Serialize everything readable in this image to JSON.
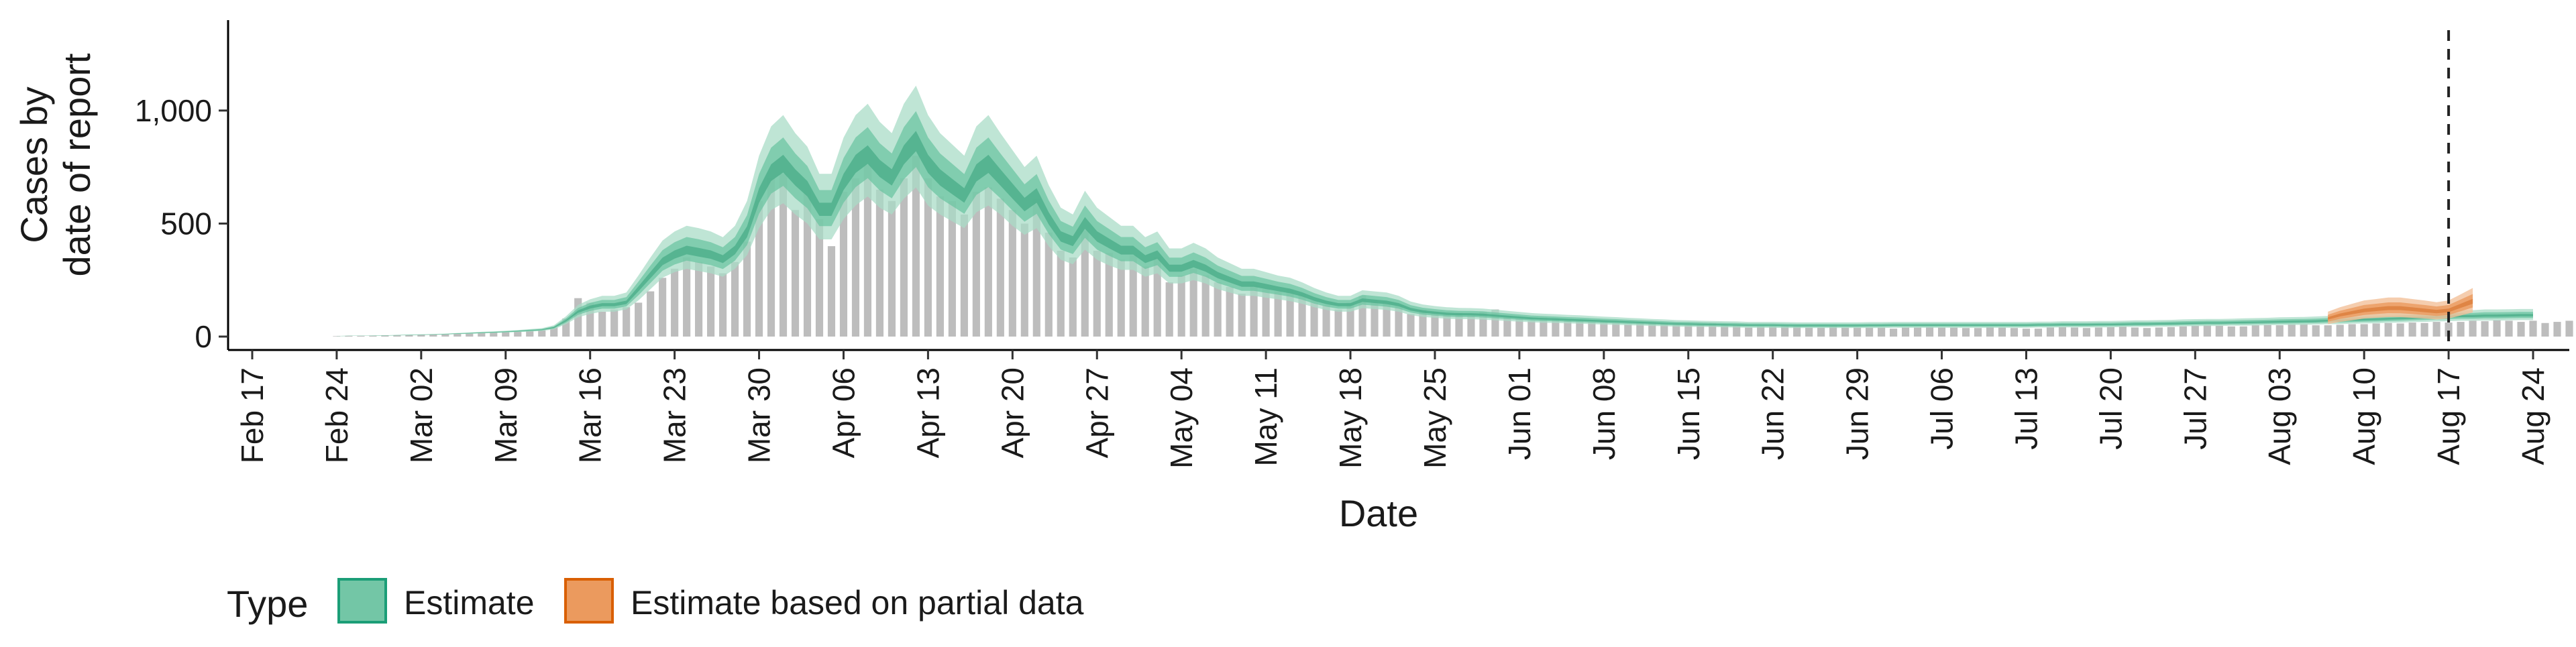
{
  "chart_data": {
    "type": "area",
    "xlabel": "Date",
    "ylabel_lines": [
      "Cases by",
      "date of report"
    ],
    "ylim": [
      0,
      1400
    ],
    "xlim": [
      "2020-02-15",
      "2020-08-27"
    ],
    "y_ticks": [
      0,
      500,
      1000
    ],
    "y_tick_labels": [
      "0",
      "500",
      "1,000"
    ],
    "x_ticks": [
      "2020-02-17",
      "2020-02-24",
      "2020-03-02",
      "2020-03-09",
      "2020-03-16",
      "2020-03-23",
      "2020-03-30",
      "2020-04-06",
      "2020-04-13",
      "2020-04-20",
      "2020-04-27",
      "2020-05-04",
      "2020-05-11",
      "2020-05-18",
      "2020-05-25",
      "2020-06-01",
      "2020-06-08",
      "2020-06-15",
      "2020-06-22",
      "2020-06-29",
      "2020-07-06",
      "2020-07-13",
      "2020-07-20",
      "2020-07-27",
      "2020-08-03",
      "2020-08-10",
      "2020-08-17",
      "2020-08-24"
    ],
    "x_tick_labels": [
      "Feb 17",
      "Feb 24",
      "Mar 02",
      "Mar 09",
      "Mar 16",
      "Mar 23",
      "Mar 30",
      "Apr 06",
      "Apr 13",
      "Apr 20",
      "Apr 27",
      "May 04",
      "May 11",
      "May 18",
      "May 25",
      "Jun 01",
      "Jun 08",
      "Jun 15",
      "Jun 22",
      "Jun 29",
      "Jul 06",
      "Jul 13",
      "Jul 20",
      "Jul 27",
      "Aug 03",
      "Aug 10",
      "Aug 17",
      "Aug 24"
    ],
    "reference_line_date": "2020-08-17",
    "grid": false,
    "legend_position": "bottom",
    "legend": {
      "title": "Type",
      "items": [
        {
          "label": "Estimate",
          "fill": "#73c6a6",
          "stroke": "#1b9e77"
        },
        {
          "label": "Estimate based on partial data",
          "fill": "#eb9a5e",
          "stroke": "#d95f02"
        }
      ]
    },
    "colors": {
      "bars": "#bdbdbd",
      "estimate_band_outer": "#a9dcc7",
      "estimate_band_mid": "#6cc4a1",
      "estimate_band_inner": "#45a985",
      "partial_band_outer": "#f3c09a",
      "partial_band_mid": "#eb9a5e",
      "partial_band_inner": "#d97b38",
      "reference_line": "#222222"
    },
    "reported_cases": {
      "start": "2020-02-24",
      "values": [
        2,
        3,
        3,
        4,
        5,
        6,
        7,
        8,
        9,
        10,
        12,
        14,
        16,
        18,
        20,
        22,
        25,
        28,
        40,
        80,
        170,
        150,
        110,
        120,
        130,
        150,
        200,
        260,
        300,
        350,
        330,
        310,
        280,
        330,
        420,
        600,
        700,
        720,
        560,
        650,
        520,
        400,
        640,
        700,
        760,
        650,
        600,
        700,
        800,
        700,
        620,
        600,
        540,
        640,
        660,
        610,
        560,
        500,
        610,
        460,
        380,
        350,
        470,
        380,
        370,
        340,
        360,
        310,
        350,
        240,
        270,
        300,
        270,
        240,
        220,
        190,
        230,
        210,
        200,
        210,
        190,
        160,
        140,
        120,
        150,
        180,
        160,
        155,
        140,
        100,
        120,
        110,
        100,
        105,
        100,
        110,
        120,
        90,
        80,
        70,
        85,
        80,
        75,
        70,
        65,
        70,
        60,
        55,
        60,
        65,
        60,
        55,
        50,
        55,
        60,
        55,
        50,
        40,
        45,
        45,
        50,
        45,
        40,
        40,
        45,
        40,
        40,
        40,
        40,
        35,
        40,
        40,
        42,
        40,
        40,
        38,
        38,
        42,
        40,
        38,
        35,
        35,
        40,
        42,
        40,
        38,
        40,
        42,
        45,
        40,
        38,
        40,
        42,
        45,
        48,
        50,
        48,
        45,
        45,
        50,
        52,
        50,
        55,
        55,
        50,
        50,
        52,
        55,
        55,
        58,
        60,
        58,
        62,
        60,
        65,
        62,
        65,
        70,
        68,
        72,
        70,
        65,
        70,
        60,
        65,
        70,
        62,
        58,
        60,
        75,
        65,
        70
      ]
    },
    "estimate": {
      "start": "2020-02-24",
      "median": [
        2,
        3,
        3,
        4,
        5,
        6,
        7,
        8,
        9,
        11,
        13,
        15,
        17,
        19,
        21,
        24,
        27,
        30,
        40,
        70,
        110,
        130,
        140,
        140,
        150,
        210,
        270,
        330,
        360,
        380,
        370,
        360,
        340,
        380,
        460,
        620,
        720,
        760,
        700,
        650,
        560,
        560,
        680,
        760,
        800,
        740,
        700,
        800,
        860,
        760,
        700,
        660,
        620,
        720,
        760,
        700,
        640,
        580,
        620,
        520,
        440,
        420,
        500,
        440,
        410,
        380,
        380,
        340,
        360,
        300,
        300,
        320,
        300,
        270,
        250,
        230,
        230,
        220,
        210,
        200,
        185,
        165,
        150,
        140,
        140,
        160,
        155,
        150,
        140,
        120,
        110,
        105,
        100,
        98,
        98,
        96,
        92,
        88,
        84,
        80,
        78,
        76,
        74,
        72,
        70,
        68,
        66,
        64,
        62,
        60,
        58,
        56,
        55,
        54,
        53,
        52,
        51,
        50,
        50,
        50,
        49,
        48,
        48,
        48,
        48,
        48,
        48,
        49,
        49,
        50,
        50,
        50,
        50,
        50,
        50,
        50,
        50,
        50,
        50,
        50,
        50,
        51,
        51,
        52,
        52,
        52,
        53,
        53,
        54,
        55,
        55,
        56,
        57,
        58,
        59,
        60,
        60,
        61,
        62,
        63,
        64,
        65,
        66,
        67,
        68,
        70,
        71,
        73,
        75,
        76,
        78,
        80,
        82,
        84,
        86,
        88,
        90,
        90,
        92,
        92,
        93,
        94,
        94
      ],
      "lower90": [
        2,
        3,
        3,
        4,
        4,
        5,
        6,
        7,
        8,
        9,
        11,
        12,
        14,
        16,
        18,
        20,
        22,
        25,
        32,
        55,
        85,
        100,
        110,
        110,
        120,
        160,
        210,
        260,
        285,
        300,
        290,
        280,
        265,
        300,
        360,
        480,
        560,
        590,
        540,
        500,
        430,
        430,
        520,
        580,
        620,
        570,
        540,
        610,
        660,
        580,
        540,
        510,
        480,
        550,
        580,
        540,
        490,
        450,
        480,
        400,
        340,
        320,
        385,
        340,
        315,
        295,
        295,
        265,
        280,
        235,
        235,
        250,
        235,
        210,
        195,
        180,
        180,
        172,
        165,
        157,
        145,
        130,
        118,
        110,
        110,
        126,
        122,
        118,
        110,
        95,
        87,
        83,
        79,
        77,
        77,
        75,
        72,
        69,
        66,
        63,
        61,
        60,
        58,
        57,
        55,
        53,
        52,
        50,
        49,
        47,
        46,
        44,
        43,
        42,
        42,
        41,
        40,
        39,
        39,
        39,
        38,
        38,
        38,
        38,
        38,
        38,
        38,
        38,
        38,
        39,
        39,
        39,
        39,
        39,
        39,
        39,
        39,
        39,
        39,
        39,
        39,
        40,
        40,
        41,
        41,
        41,
        41,
        41,
        42,
        43,
        43,
        44,
        44,
        45,
        46,
        47,
        47,
        48,
        48,
        49,
        50,
        51,
        51,
        52,
        53,
        55,
        55,
        57,
        58,
        59,
        61,
        62,
        64,
        65,
        67,
        68,
        70,
        70,
        71,
        71,
        72,
        73,
        73
      ],
      "upper90": [
        3,
        4,
        4,
        5,
        6,
        7,
        9,
        10,
        11,
        13,
        16,
        18,
        21,
        23,
        26,
        29,
        33,
        37,
        50,
        90,
        140,
        165,
        180,
        180,
        195,
        270,
        350,
        425,
        465,
        490,
        480,
        465,
        440,
        490,
        600,
        800,
        930,
        980,
        900,
        840,
        720,
        720,
        880,
        980,
        1030,
        950,
        900,
        1030,
        1110,
        980,
        900,
        850,
        800,
        930,
        980,
        900,
        825,
        750,
        800,
        670,
        570,
        540,
        645,
        570,
        530,
        490,
        490,
        440,
        465,
        390,
        390,
        415,
        390,
        350,
        325,
        300,
        300,
        285,
        270,
        260,
        240,
        215,
        195,
        180,
        180,
        205,
        200,
        195,
        180,
        155,
        142,
        135,
        130,
        127,
        126,
        124,
        119,
        114,
        109,
        104,
        101,
        99,
        96,
        94,
        91,
        88,
        86,
        83,
        81,
        78,
        76,
        73,
        72,
        70,
        69,
        68,
        67,
        65,
        65,
        65,
        64,
        63,
        63,
        63,
        63,
        63,
        63,
        64,
        64,
        65,
        65,
        65,
        65,
        65,
        65,
        65,
        65,
        65,
        65,
        65,
        65,
        66,
        66,
        68,
        68,
        68,
        69,
        69,
        70,
        72,
        72,
        73,
        74,
        76,
        77,
        78,
        78,
        79,
        81,
        82,
        83,
        85,
        86,
        87,
        89,
        91,
        93,
        95,
        98,
        99,
        102,
        104,
        107,
        109,
        112,
        114,
        117,
        117,
        120,
        120,
        121,
        122,
        122
      ]
    },
    "partial_estimate": {
      "start": "2020-08-07",
      "median": [
        80,
        95,
        105,
        115,
        120,
        125,
        125,
        120,
        115,
        110,
        115,
        135,
        155
      ],
      "lower90": [
        55,
        65,
        72,
        80,
        83,
        86,
        86,
        83,
        80,
        76,
        80,
        93,
        107
      ],
      "upper90": [
        110,
        130,
        145,
        160,
        166,
        173,
        173,
        166,
        160,
        152,
        160,
        187,
        215
      ]
    }
  }
}
